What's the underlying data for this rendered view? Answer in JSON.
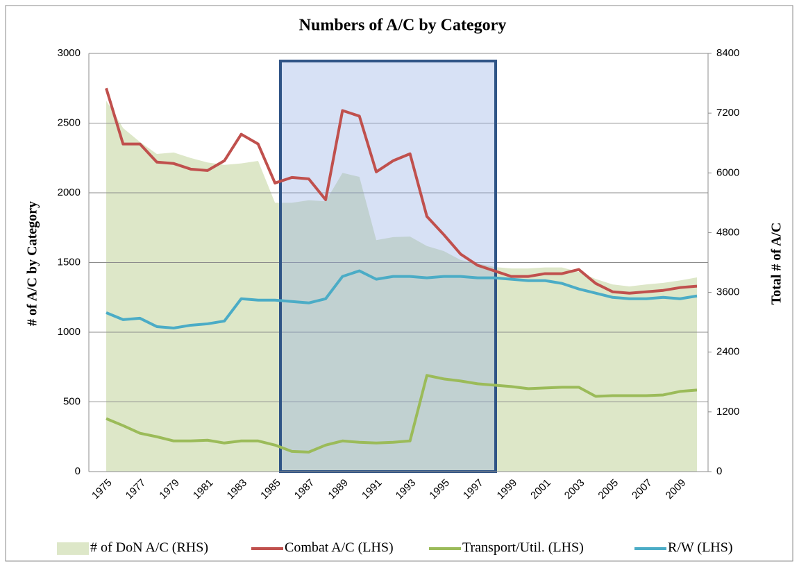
{
  "chart_data": {
    "type": "line",
    "title": "Numbers of A/C by Category",
    "ylabel": "# of A/C by Category",
    "y2label": "Total # of A/C",
    "categories": [
      "1975",
      null,
      "1977",
      null,
      "1979",
      null,
      "1981",
      null,
      "1983",
      null,
      "1985",
      null,
      "1987",
      null,
      "1989",
      null,
      "1991",
      null,
      "1993",
      null,
      "1995",
      null,
      "1997",
      null,
      "1999",
      null,
      "2001",
      null,
      "2003",
      null,
      "2005",
      null,
      "2007",
      null,
      "2009",
      null
    ],
    "ylim": [
      0,
      3000
    ],
    "yticks": [
      0,
      500,
      1000,
      1500,
      2000,
      2500,
      3000
    ],
    "y2lim": [
      0,
      8400
    ],
    "y2ticks": [
      0,
      1200,
      2400,
      3600,
      4800,
      6000,
      7200,
      8400
    ],
    "grid": true,
    "legend": "bottom",
    "series": [
      {
        "name": "# of DoN A/C (RHS)",
        "type": "area",
        "axis": "y2",
        "color": "#dde7c8",
        "values": [
          7450,
          6900,
          6620,
          6380,
          6410,
          6300,
          6210,
          6160,
          6190,
          6240,
          5400,
          5400,
          5450,
          5430,
          6000,
          5920,
          4650,
          4710,
          4720,
          4530,
          4430,
          4250,
          4180,
          4110,
          4080,
          4080,
          4100,
          4100,
          4010,
          3870,
          3760,
          3720,
          3760,
          3790,
          3840,
          3900
        ]
      },
      {
        "name": "Combat A/C (LHS)",
        "color": "#c0504d",
        "values": [
          2750,
          2350,
          2350,
          2220,
          2210,
          2170,
          2160,
          2230,
          2420,
          2350,
          2070,
          2110,
          2100,
          1950,
          2590,
          2550,
          2150,
          2230,
          2280,
          1830,
          1700,
          1560,
          1480,
          1440,
          1400,
          1400,
          1420,
          1420,
          1450,
          1350,
          1290,
          1280,
          1290,
          1300,
          1320,
          1330
        ]
      },
      {
        "name": "Transport/Util. (LHS)",
        "color": "#9bbb59",
        "values": [
          380,
          330,
          275,
          250,
          220,
          220,
          225,
          205,
          220,
          220,
          190,
          145,
          140,
          190,
          220,
          210,
          205,
          210,
          220,
          690,
          665,
          650,
          630,
          620,
          610,
          595,
          600,
          605,
          605,
          540,
          545,
          545,
          545,
          550,
          575,
          585
        ]
      },
      {
        "name": "R/W (LHS)",
        "color": "#4bacc6",
        "values": [
          1140,
          1090,
          1100,
          1040,
          1030,
          1050,
          1060,
          1080,
          1240,
          1230,
          1230,
          1220,
          1210,
          1240,
          1400,
          1440,
          1380,
          1400,
          1400,
          1390,
          1400,
          1400,
          1390,
          1390,
          1380,
          1370,
          1370,
          1350,
          1310,
          1280,
          1250,
          1240,
          1240,
          1250,
          1240,
          1260
        ]
      }
    ]
  }
}
